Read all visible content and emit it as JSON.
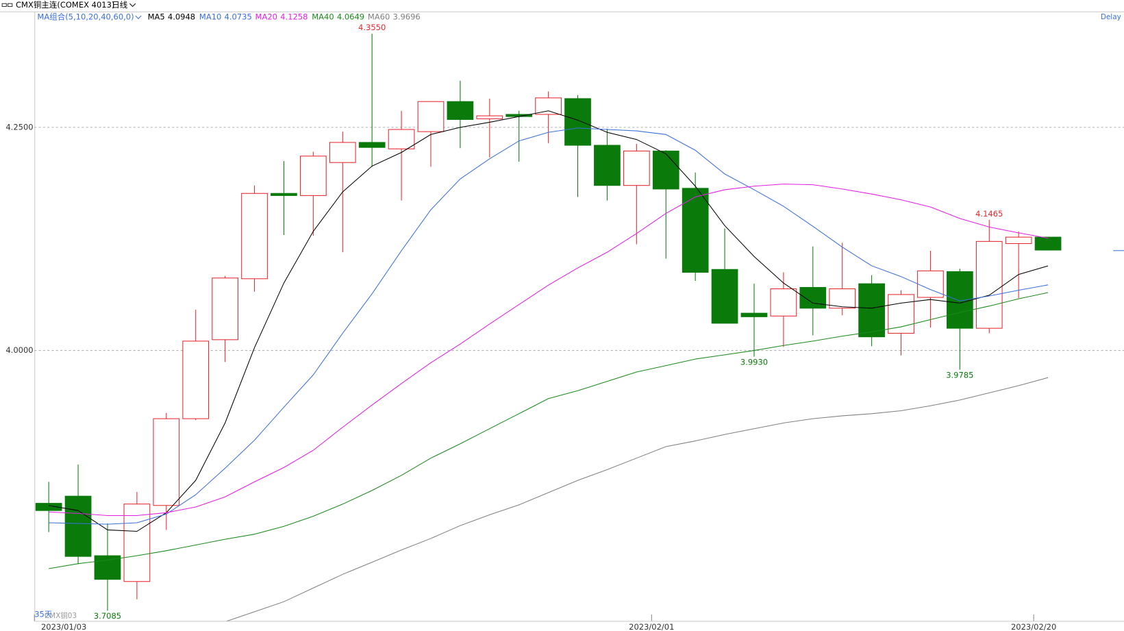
{
  "chart_data": {
    "type": "candlestick",
    "title": "CMX铜主连(COMEX 4013)",
    "period": "日线",
    "indicator": "MA组合(5,10,20,40,60,0)",
    "status": "Delay",
    "count_label": "35天",
    "contract_label": "CMX铜03",
    "categories": [
      "2023/01/03",
      null,
      null,
      null,
      null,
      null,
      null,
      null,
      null,
      null,
      null,
      null,
      null,
      null,
      null,
      null,
      null,
      null,
      null,
      null,
      null,
      "2023/02/01",
      null,
      null,
      null,
      null,
      null,
      null,
      null,
      null,
      null,
      null,
      null,
      null,
      "2023/02/20"
    ],
    "open": [
      3.8288,
      3.8368,
      3.7701,
      3.7412,
      3.8264,
      3.9236,
      4.0121,
      4.0804,
      4.176,
      4.1736,
      4.2106,
      4.2331,
      4.2259,
      4.2452,
      4.2789,
      4.2596,
      4.2645,
      4.2645,
      4.2822,
      4.2299,
      4.1849,
      4.2235,
      4.1817,
      4.0908,
      4.0418,
      4.0386,
      4.0707,
      4.0474,
      4.0748,
      4.0193,
      4.0595,
      4.0884,
      4.0249,
      4.1198,
      4.127
    ],
    "high": [
      3.8529,
      3.8722,
      3.8063,
      3.8416,
      3.9301,
      4.0458,
      4.0836,
      4.1849,
      4.2122,
      4.2227,
      4.2452,
      4.355,
      4.2685,
      4.2789,
      4.3023,
      4.2822,
      4.2685,
      4.2902,
      4.2862,
      4.2484,
      4.2315,
      4.2243,
      4.1994,
      4.1367,
      4.0748,
      4.0876,
      4.1166,
      4.1206,
      4.0844,
      4.0675,
      4.1117,
      4.0916,
      4.1465,
      4.1334,
      4.127
    ],
    "low": [
      3.7966,
      3.7605,
      3.7085,
      3.7211,
      3.799,
      3.922,
      3.9871,
      4.0659,
      4.1294,
      4.1286,
      4.1101,
      4.2058,
      4.168,
      4.2058,
      4.2267,
      4.2162,
      4.2114,
      4.2323,
      4.172,
      4.168,
      4.119,
      4.1029,
      4.078,
      4.0305,
      3.993,
      4.004,
      4.0169,
      4.0394,
      4.0048,
      3.9945,
      4.0257,
      3.9785,
      4.0193,
      4.0587,
      4.1125
    ],
    "close": [
      3.8207,
      3.7693,
      3.7436,
      3.828,
      3.9236,
      4.0105,
      4.0812,
      4.176,
      4.1736,
      4.2178,
      4.2331,
      4.2275,
      4.2476,
      4.2789,
      4.2588,
      4.2629,
      4.2621,
      4.283,
      4.2299,
      4.1849,
      4.2235,
      4.1809,
      4.0876,
      4.0305,
      4.0378,
      4.0691,
      4.0474,
      4.0691,
      4.0153,
      4.0627,
      4.0892,
      4.0249,
      4.1222,
      4.127,
      4.1125
    ],
    "high_labels": [
      null,
      null,
      null,
      null,
      null,
      null,
      null,
      null,
      null,
      null,
      null,
      "4.3550",
      null,
      null,
      null,
      null,
      null,
      null,
      null,
      null,
      null,
      null,
      null,
      null,
      null,
      null,
      null,
      null,
      null,
      null,
      null,
      null,
      "4.1465",
      null,
      null
    ],
    "low_labels": [
      null,
      null,
      "3.7085",
      null,
      null,
      null,
      null,
      null,
      null,
      null,
      null,
      null,
      null,
      null,
      null,
      null,
      null,
      null,
      null,
      null,
      null,
      null,
      null,
      null,
      "3.9930",
      null,
      null,
      null,
      null,
      null,
      null,
      "3.9785",
      null,
      null,
      null
    ],
    "up_color": "#e8262d",
    "down_color": "#0a7a0a",
    "series": [
      {
        "name": "MA5",
        "color": "#000000",
        "values": [
          3.8263,
          3.8207,
          3.799,
          3.7974,
          3.8183,
          3.8545,
          3.9188,
          4.0032,
          4.0756,
          4.1335,
          4.1777,
          4.2066,
          4.2219,
          4.242,
          4.25,
          4.2557,
          4.2621,
          4.2685,
          4.2581,
          4.2444,
          4.2364,
          4.2203,
          4.1841,
          4.1399,
          4.1053,
          4.0756,
          4.0531,
          4.049,
          4.0474,
          4.0531,
          4.0571,
          4.0531,
          4.0619,
          4.0852,
          4.0948
        ]
      },
      {
        "name": "MA10",
        "color": "#3a6fdc",
        "values": [
          3.807,
          3.8062,
          3.8054,
          3.807,
          3.8167,
          3.8384,
          3.8681,
          3.8995,
          3.9365,
          3.9727,
          4.0193,
          4.0635,
          4.1118,
          4.1576,
          4.1922,
          4.2147,
          4.2348,
          4.2444,
          4.2492,
          4.2476,
          4.246,
          4.242,
          4.2243,
          4.1978,
          4.1801,
          4.1616,
          4.1391,
          4.1158,
          4.0949,
          4.0828,
          4.0683,
          4.0555,
          4.0611,
          4.0675,
          4.0735
        ]
      },
      {
        "name": "MA20",
        "color": "#e41ee4",
        "values": [
          3.8191,
          3.8175,
          3.8151,
          3.8151,
          3.8183,
          3.8247,
          3.836,
          3.8529,
          3.8689,
          3.8882,
          3.914,
          3.9389,
          3.963,
          3.9863,
          4.0072,
          4.0297,
          4.0515,
          4.0732,
          4.0925,
          4.1101,
          4.1311,
          4.1536,
          4.1721,
          4.1801,
          4.1841,
          4.1865,
          4.1857,
          4.1809,
          4.1753,
          4.1688,
          4.1608,
          4.1479,
          4.1383,
          4.1318,
          4.1258
        ]
      },
      {
        "name": "MA40",
        "color": "#1b8a1b",
        "values": [
          3.7556,
          3.7612,
          3.7652,
          3.7701,
          3.7757,
          3.7821,
          3.7885,
          3.7942,
          3.803,
          3.8143,
          3.8279,
          3.8432,
          3.8601,
          3.8794,
          3.8955,
          3.9124,
          3.9292,
          3.9461,
          3.955,
          3.9654,
          3.9759,
          3.9831,
          3.9904,
          3.9952,
          4.0,
          4.0056,
          4.0105,
          4.0161,
          4.0209,
          4.0265,
          4.0346,
          4.0426,
          4.0498,
          4.0579,
          4.0649
        ]
      },
      {
        "name": "MA60",
        "color": "#808080",
        "values": [
          null,
          null,
          null,
          null,
          null,
          null,
          3.6961,
          3.7073,
          3.7186,
          3.7339,
          3.7492,
          3.7628,
          3.7765,
          3.7894,
          3.8038,
          3.8159,
          3.8271,
          3.8408,
          3.8545,
          3.8665,
          3.8794,
          3.8923,
          3.8987,
          3.9059,
          3.9124,
          3.9188,
          3.9236,
          3.9268,
          3.9292,
          3.9325,
          3.9381,
          3.9445,
          3.9526,
          3.9606,
          3.9696
        ]
      }
    ],
    "ylim": [
      3.697,
      4.379
    ],
    "yticks": [
      {
        "value": 4,
        "label": "4.0000"
      },
      {
        "value": 4.25,
        "label": "4.2500"
      }
    ],
    "grid": true
  }
}
